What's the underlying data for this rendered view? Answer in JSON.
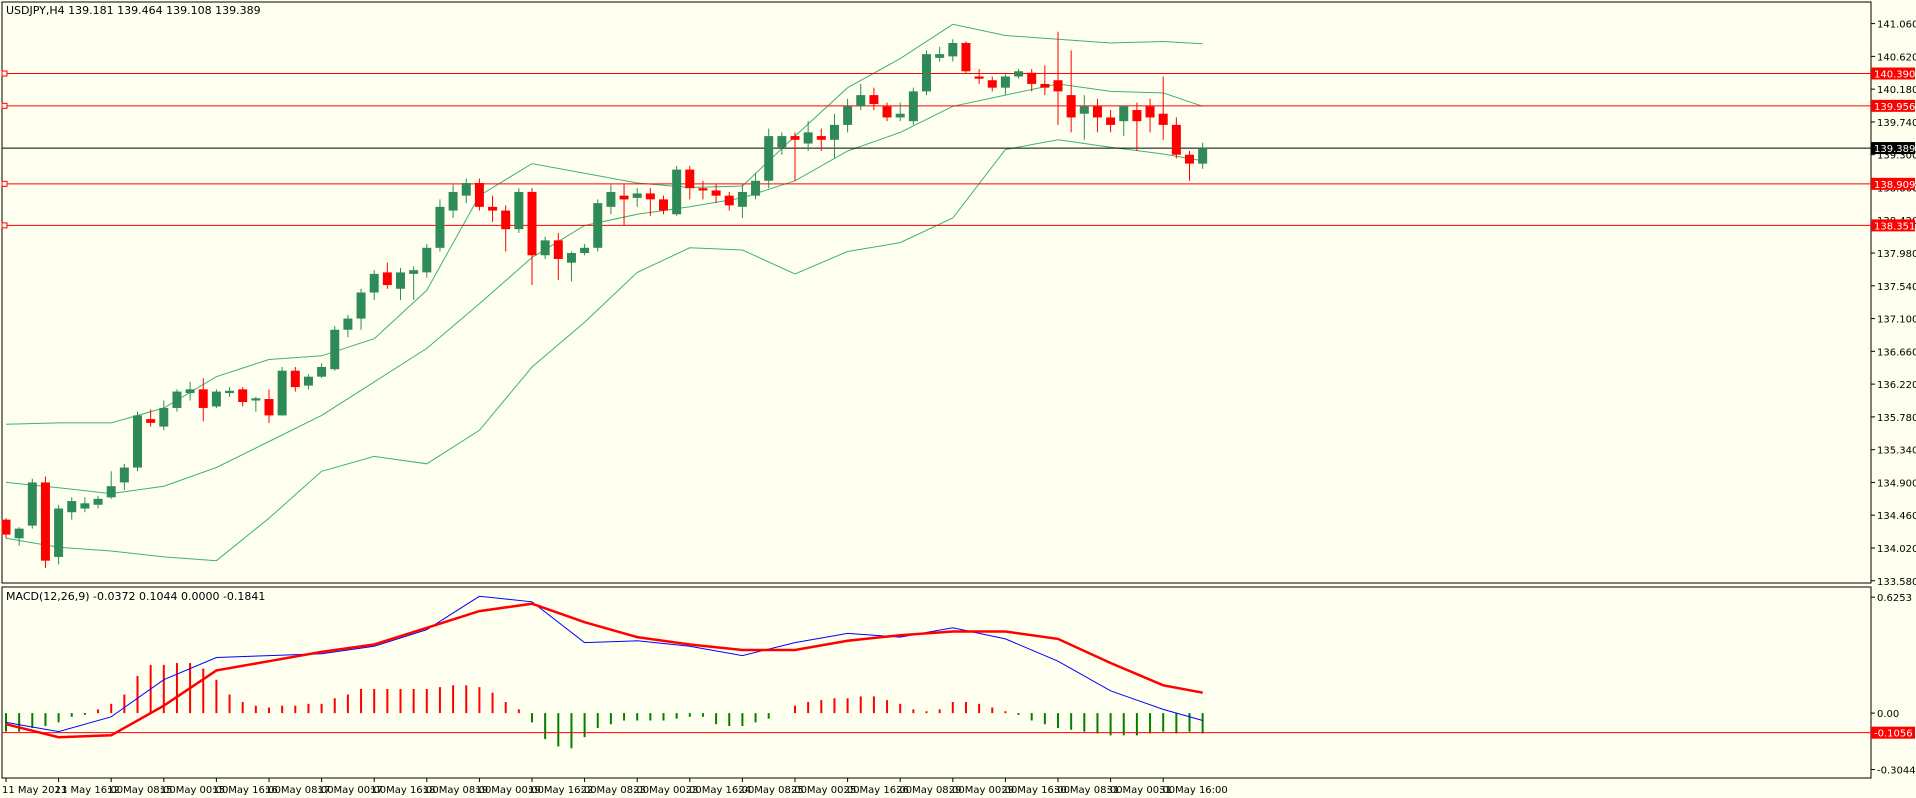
{
  "header": {
    "symbol_line": "USDJPY,H4  139.181 139.464 139.108 139.389",
    "macd_line": "MACD(12,26,9) -0.0372 0.1044 0.0000 -0.1841"
  },
  "colors": {
    "background": "#fffff0",
    "bull": "#2e8b57",
    "bear": "#ff0000",
    "bands": "#3cb371",
    "level": "#ff0000",
    "price_line": "#000000",
    "macd_line": "#0000ff",
    "signal_line": "#ff0000",
    "hist_pos": "#ff0000",
    "hist_neg": "#008000"
  },
  "chart_data": {
    "type": "candlestick",
    "symbol": "USDJPY",
    "timeframe": "H4",
    "price_axis": {
      "range": [
        133.55,
        141.35
      ],
      "ticks": [
        "141.060",
        "140.620",
        "140.180",
        "139.740",
        "139.300",
        "138.860",
        "138.420",
        "137.980",
        "137.540",
        "137.100",
        "136.660",
        "136.220",
        "135.780",
        "135.340",
        "134.900",
        "134.460",
        "134.020",
        "133.580"
      ]
    },
    "price_levels": [
      {
        "label": "140.390",
        "value": 140.39
      },
      {
        "label": "139.956",
        "value": 139.956
      },
      {
        "label": "138.909",
        "value": 138.909
      },
      {
        "label": "138.351",
        "value": 138.351
      }
    ],
    "current_price": {
      "label": "139.389",
      "value": 139.389
    },
    "time_labels": [
      {
        "label": "11 May 2023",
        "index": 0
      },
      {
        "label": "11 May 16:00",
        "index": 4
      },
      {
        "label": "12 May 08:00",
        "index": 8
      },
      {
        "label": "15 May 00:00",
        "index": 12
      },
      {
        "label": "15 May 16:00",
        "index": 16
      },
      {
        "label": "16 May 08:00",
        "index": 20
      },
      {
        "label": "17 May 00:00",
        "index": 24
      },
      {
        "label": "17 May 16:00",
        "index": 28
      },
      {
        "label": "18 May 08:00",
        "index": 32
      },
      {
        "label": "19 May 00:00",
        "index": 36
      },
      {
        "label": "19 May 16:00",
        "index": 40
      },
      {
        "label": "22 May 08:00",
        "index": 44
      },
      {
        "label": "23 May 00:00",
        "index": 48
      },
      {
        "label": "23 May 16:00",
        "index": 52
      },
      {
        "label": "24 May 08:00",
        "index": 56
      },
      {
        "label": "25 May 00:00",
        "index": 60
      },
      {
        "label": "25 May 16:00",
        "index": 64
      },
      {
        "label": "26 May 08:00",
        "index": 68
      },
      {
        "label": "29 May 00:00",
        "index": 72
      },
      {
        "label": "29 May 16:00",
        "index": 76
      },
      {
        "label": "30 May 08:00",
        "index": 80
      },
      {
        "label": "31 May 00:00",
        "index": 84
      },
      {
        "label": "31 May 16:00",
        "index": 88
      }
    ],
    "candles": [
      [
        134.4,
        134.42,
        134.15,
        134.2
      ],
      [
        134.15,
        134.3,
        134.05,
        134.28
      ],
      [
        134.32,
        134.95,
        134.28,
        134.9
      ],
      [
        134.9,
        134.98,
        133.75,
        133.85
      ],
      [
        133.9,
        134.6,
        133.8,
        134.55
      ],
      [
        134.5,
        134.7,
        134.4,
        134.65
      ],
      [
        134.55,
        134.7,
        134.5,
        134.62
      ],
      [
        134.6,
        134.72,
        134.55,
        134.68
      ],
      [
        134.7,
        135.05,
        134.68,
        134.85
      ],
      [
        134.9,
        135.15,
        134.8,
        135.1
      ],
      [
        135.1,
        135.85,
        135.05,
        135.8
      ],
      [
        135.75,
        135.88,
        135.65,
        135.7
      ],
      [
        135.65,
        136.0,
        135.6,
        135.9
      ],
      [
        135.9,
        136.15,
        135.85,
        136.12
      ],
      [
        136.1,
        136.25,
        136.0,
        136.15
      ],
      [
        136.15,
        136.3,
        135.72,
        135.9
      ],
      [
        135.92,
        136.15,
        135.9,
        136.12
      ],
      [
        136.1,
        136.18,
        136.05,
        136.13
      ],
      [
        136.15,
        136.18,
        135.92,
        135.98
      ],
      [
        136.0,
        136.05,
        135.85,
        136.03
      ],
      [
        136.02,
        136.15,
        135.7,
        135.8
      ],
      [
        135.8,
        136.45,
        135.8,
        136.4
      ],
      [
        136.4,
        136.45,
        136.12,
        136.18
      ],
      [
        136.2,
        136.35,
        136.15,
        136.32
      ],
      [
        136.32,
        136.5,
        136.3,
        136.45
      ],
      [
        136.42,
        137.0,
        136.4,
        136.95
      ],
      [
        136.95,
        137.15,
        136.85,
        137.1
      ],
      [
        137.1,
        137.5,
        136.95,
        137.45
      ],
      [
        137.45,
        137.75,
        137.35,
        137.7
      ],
      [
        137.72,
        137.85,
        137.5,
        137.55
      ],
      [
        137.5,
        137.78,
        137.35,
        137.72
      ],
      [
        137.7,
        137.8,
        137.35,
        137.75
      ],
      [
        137.72,
        138.1,
        137.65,
        138.05
      ],
      [
        138.05,
        138.7,
        138.0,
        138.6
      ],
      [
        138.55,
        138.9,
        138.45,
        138.8
      ],
      [
        138.75,
        138.98,
        138.65,
        138.92
      ],
      [
        138.92,
        138.98,
        138.55,
        138.6
      ],
      [
        138.6,
        138.75,
        138.4,
        138.55
      ],
      [
        138.55,
        138.62,
        138.0,
        138.3
      ],
      [
        138.3,
        138.85,
        138.25,
        138.8
      ],
      [
        138.8,
        138.85,
        137.55,
        137.95
      ],
      [
        137.95,
        138.2,
        137.9,
        138.15
      ],
      [
        138.15,
        138.25,
        137.62,
        137.9
      ],
      [
        137.85,
        138.0,
        137.6,
        137.98
      ],
      [
        137.98,
        138.1,
        137.95,
        138.05
      ],
      [
        138.05,
        138.7,
        138.0,
        138.65
      ],
      [
        138.6,
        138.9,
        138.5,
        138.8
      ],
      [
        138.75,
        138.9,
        138.35,
        138.7
      ],
      [
        138.72,
        138.85,
        138.6,
        138.78
      ],
      [
        138.78,
        138.85,
        138.48,
        138.7
      ],
      [
        138.7,
        138.75,
        138.5,
        138.55
      ],
      [
        138.5,
        139.15,
        138.48,
        139.1
      ],
      [
        139.1,
        139.15,
        138.7,
        138.85
      ],
      [
        138.85,
        138.95,
        138.7,
        138.82
      ],
      [
        138.82,
        138.9,
        138.65,
        138.75
      ],
      [
        138.75,
        138.8,
        138.55,
        138.62
      ],
      [
        138.6,
        138.9,
        138.45,
        138.8
      ],
      [
        138.75,
        139.05,
        138.7,
        138.95
      ],
      [
        138.95,
        139.65,
        138.85,
        139.55
      ],
      [
        139.4,
        139.6,
        139.3,
        139.55
      ],
      [
        139.55,
        139.6,
        138.95,
        139.5
      ],
      [
        139.45,
        139.75,
        139.35,
        139.6
      ],
      [
        139.55,
        139.65,
        139.35,
        139.5
      ],
      [
        139.5,
        139.85,
        139.25,
        139.7
      ],
      [
        139.7,
        140.05,
        139.6,
        139.95
      ],
      [
        139.95,
        140.25,
        139.9,
        140.1
      ],
      [
        140.1,
        140.2,
        139.9,
        139.98
      ],
      [
        139.95,
        140.0,
        139.75,
        139.8
      ],
      [
        139.8,
        140.0,
        139.75,
        139.85
      ],
      [
        139.75,
        140.2,
        139.7,
        140.15
      ],
      [
        140.15,
        140.7,
        140.1,
        140.65
      ],
      [
        140.6,
        140.75,
        140.55,
        140.65
      ],
      [
        140.62,
        140.85,
        140.55,
        140.8
      ],
      [
        140.8,
        140.82,
        140.4,
        140.42
      ],
      [
        140.35,
        140.45,
        140.25,
        140.32
      ],
      [
        140.3,
        140.35,
        140.15,
        140.2
      ],
      [
        140.2,
        140.38,
        140.1,
        140.35
      ],
      [
        140.35,
        140.45,
        140.32,
        140.42
      ],
      [
        140.4,
        140.45,
        140.15,
        140.25
      ],
      [
        140.25,
        140.5,
        140.1,
        140.2
      ],
      [
        140.3,
        140.95,
        139.7,
        140.15
      ],
      [
        140.1,
        140.7,
        139.6,
        139.8
      ],
      [
        139.85,
        140.1,
        139.5,
        139.95
      ],
      [
        139.95,
        140.05,
        139.6,
        139.8
      ],
      [
        139.8,
        139.9,
        139.6,
        139.7
      ],
      [
        139.75,
        139.95,
        139.55,
        139.95
      ],
      [
        139.9,
        140.0,
        139.35,
        139.75
      ],
      [
        139.95,
        140.05,
        139.6,
        139.8
      ],
      [
        139.85,
        140.35,
        139.5,
        139.7
      ],
      [
        139.7,
        139.8,
        139.25,
        139.3
      ],
      [
        139.3,
        139.35,
        138.95,
        139.18
      ],
      [
        139.18,
        139.46,
        139.11,
        139.389
      ]
    ],
    "bollinger": {
      "upper": [
        [
          0,
          135.68
        ],
        [
          4,
          135.7
        ],
        [
          8,
          135.7
        ],
        [
          12,
          135.9
        ],
        [
          16,
          136.32
        ],
        [
          20,
          136.55
        ],
        [
          24,
          136.6
        ],
        [
          28,
          136.83
        ],
        [
          32,
          137.48
        ],
        [
          36,
          138.75
        ],
        [
          40,
          139.18
        ],
        [
          44,
          139.05
        ],
        [
          48,
          138.92
        ],
        [
          52,
          138.86
        ],
        [
          56,
          138.88
        ],
        [
          60,
          139.55
        ],
        [
          64,
          140.2
        ],
        [
          68,
          140.59
        ],
        [
          72,
          141.05
        ],
        [
          76,
          140.9
        ],
        [
          80,
          140.85
        ],
        [
          84,
          140.8
        ],
        [
          88,
          140.82
        ],
        [
          91,
          140.79
        ]
      ],
      "middle": [
        [
          0,
          134.9
        ],
        [
          4,
          134.83
        ],
        [
          8,
          134.75
        ],
        [
          12,
          134.85
        ],
        [
          16,
          135.1
        ],
        [
          20,
          135.45
        ],
        [
          24,
          135.8
        ],
        [
          28,
          136.25
        ],
        [
          32,
          136.7
        ],
        [
          36,
          137.3
        ],
        [
          40,
          137.92
        ],
        [
          44,
          138.35
        ],
        [
          48,
          138.5
        ],
        [
          52,
          138.6
        ],
        [
          56,
          138.72
        ],
        [
          60,
          138.95
        ],
        [
          64,
          139.35
        ],
        [
          68,
          139.6
        ],
        [
          72,
          139.95
        ],
        [
          76,
          140.1
        ],
        [
          80,
          140.25
        ],
        [
          84,
          140.15
        ],
        [
          88,
          140.13
        ],
        [
          91,
          139.95
        ]
      ],
      "lower": [
        [
          0,
          134.15
        ],
        [
          4,
          134.03
        ],
        [
          8,
          133.98
        ],
        [
          12,
          133.9
        ],
        [
          16,
          133.85
        ],
        [
          20,
          134.42
        ],
        [
          24,
          135.05
        ],
        [
          28,
          135.25
        ],
        [
          32,
          135.15
        ],
        [
          36,
          135.6
        ],
        [
          40,
          136.45
        ],
        [
          44,
          137.05
        ],
        [
          48,
          137.72
        ],
        [
          52,
          138.05
        ],
        [
          56,
          138.02
        ],
        [
          60,
          137.7
        ],
        [
          64,
          138.0
        ],
        [
          68,
          138.12
        ],
        [
          72,
          138.45
        ],
        [
          76,
          139.37
        ],
        [
          80,
          139.5
        ],
        [
          84,
          139.4
        ],
        [
          88,
          139.31
        ],
        [
          91,
          139.22
        ]
      ]
    },
    "macd": {
      "range": [
        -0.35,
        0.68
      ],
      "ticks": [
        "0.6253",
        "0.00",
        "-0.3044"
      ],
      "current_label": "-0.1056",
      "current_value": -0.1056,
      "macd_line": [
        [
          0,
          -0.05
        ],
        [
          4,
          -0.1
        ],
        [
          8,
          -0.02
        ],
        [
          12,
          0.18
        ],
        [
          16,
          0.3
        ],
        [
          20,
          0.31
        ],
        [
          24,
          0.32
        ],
        [
          28,
          0.36
        ],
        [
          32,
          0.45
        ],
        [
          36,
          0.63
        ],
        [
          40,
          0.6
        ],
        [
          44,
          0.38
        ],
        [
          48,
          0.39
        ],
        [
          52,
          0.36
        ],
        [
          56,
          0.31
        ],
        [
          60,
          0.38
        ],
        [
          64,
          0.43
        ],
        [
          68,
          0.41
        ],
        [
          72,
          0.46
        ],
        [
          76,
          0.4
        ],
        [
          80,
          0.28
        ],
        [
          84,
          0.12
        ],
        [
          88,
          0.02
        ],
        [
          91,
          -0.04
        ]
      ],
      "signal_line": [
        [
          0,
          -0.06
        ],
        [
          4,
          -0.13
        ],
        [
          8,
          -0.12
        ],
        [
          12,
          0.04
        ],
        [
          16,
          0.23
        ],
        [
          20,
          0.28
        ],
        [
          24,
          0.33
        ],
        [
          28,
          0.37
        ],
        [
          32,
          0.46
        ],
        [
          36,
          0.55
        ],
        [
          40,
          0.59
        ],
        [
          44,
          0.49
        ],
        [
          48,
          0.41
        ],
        [
          52,
          0.37
        ],
        [
          56,
          0.34
        ],
        [
          60,
          0.34
        ],
        [
          64,
          0.39
        ],
        [
          68,
          0.42
        ],
        [
          72,
          0.44
        ],
        [
          76,
          0.44
        ],
        [
          80,
          0.4
        ],
        [
          84,
          0.27
        ],
        [
          88,
          0.15
        ],
        [
          91,
          0.11
        ]
      ],
      "histogram": [
        -0.1,
        -0.1,
        -0.08,
        -0.07,
        -0.05,
        -0.02,
        -0.01,
        0.02,
        0.05,
        0.1,
        0.2,
        0.26,
        0.26,
        0.27,
        0.27,
        0.24,
        0.18,
        0.1,
        0.06,
        0.04,
        0.03,
        0.04,
        0.04,
        0.05,
        0.05,
        0.08,
        0.1,
        0.13,
        0.13,
        0.13,
        0.13,
        0.13,
        0.13,
        0.14,
        0.15,
        0.15,
        0.14,
        0.11,
        0.06,
        0.02,
        -0.05,
        -0.14,
        -0.18,
        -0.19,
        -0.13,
        -0.08,
        -0.06,
        -0.04,
        -0.04,
        -0.04,
        -0.04,
        -0.03,
        -0.02,
        -0.02,
        -0.06,
        -0.07,
        -0.07,
        -0.05,
        -0.03,
        0.0,
        0.04,
        0.06,
        0.07,
        0.08,
        0.08,
        0.09,
        0.09,
        0.07,
        0.05,
        0.02,
        0.01,
        0.02,
        0.06,
        0.06,
        0.05,
        0.03,
        0.01,
        -0.01,
        -0.04,
        -0.06,
        -0.08,
        -0.09,
        -0.1,
        -0.11,
        -0.12,
        -0.12,
        -0.12,
        -0.11,
        -0.1,
        -0.11,
        -0.1,
        -0.11
      ]
    }
  }
}
